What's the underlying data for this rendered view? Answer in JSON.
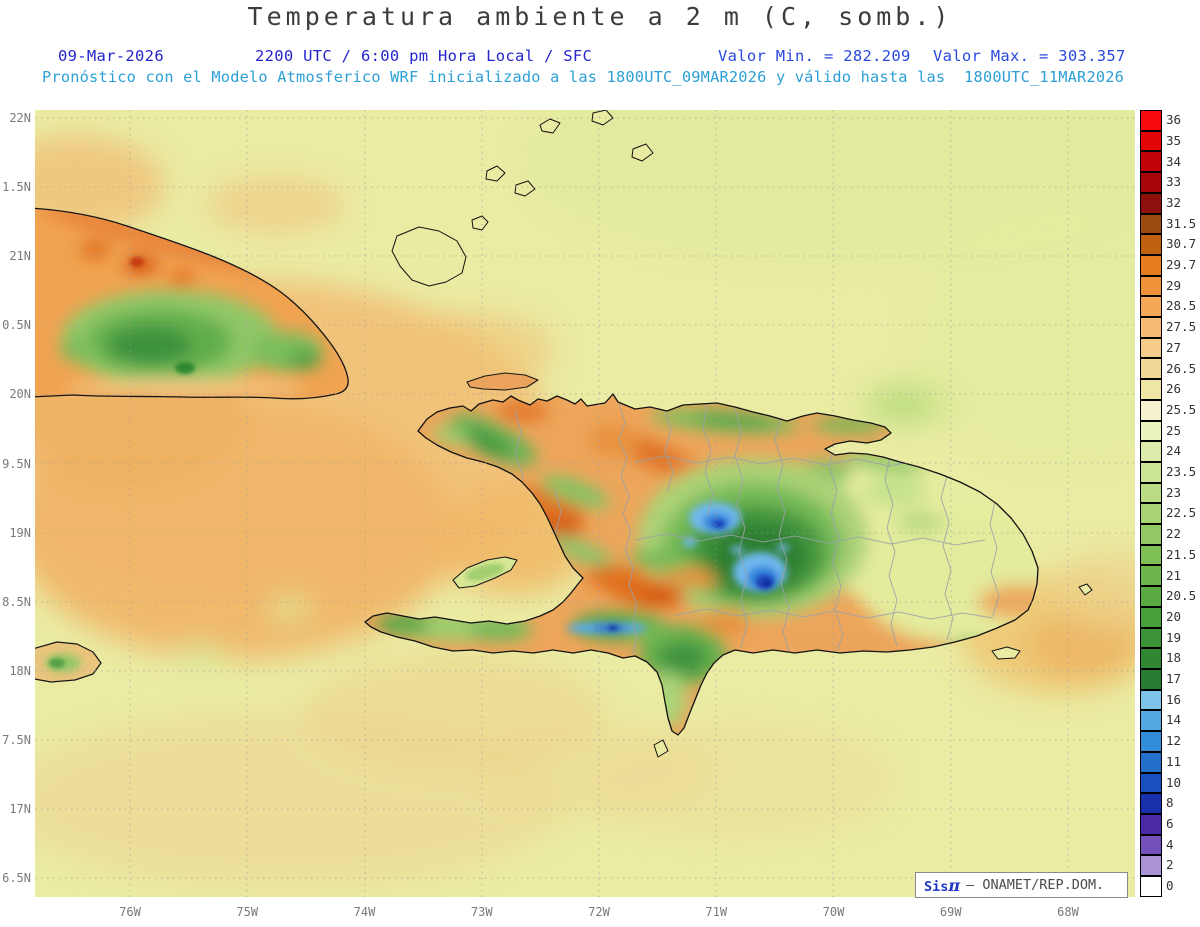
{
  "title": "Temperatura ambiente a 2 m (C, somb.)",
  "subtitle": {
    "date": "09-Mar-2026",
    "time_line": "2200 UTC / 6:00 pm Hora Local / SFC",
    "valor_min": "Valor Min. = 282.209",
    "valor_max": "Valor Max. = 303.357",
    "model_line": "Pronóstico con el Modelo Atmosferico WRF inicializado a las 1800UTC_09MAR2026 y válido hasta las  1800UTC_11MAR2026"
  },
  "credit": {
    "sis": "Sis",
    "pi": "π",
    "rest": "– ONAMET/REP.DOM."
  },
  "axes": {
    "lat": [
      "22N",
      "1.5N",
      "21N",
      "0.5N",
      "20N",
      "9.5N",
      "19N",
      "8.5N",
      "18N",
      "7.5N",
      "17N",
      "6.5N"
    ],
    "lon": [
      "76W",
      "75W",
      "74W",
      "73W",
      "72W",
      "71W",
      "70W",
      "69W",
      "68W"
    ]
  },
  "colorbar": {
    "unit": "C",
    "levels": [
      "36",
      "35",
      "34",
      "33",
      "32",
      "31.5",
      "30.7",
      "29.7",
      "29",
      "28.5",
      "27.5",
      "27",
      "26.5",
      "26",
      "25.5",
      "25",
      "24",
      "23.5",
      "23",
      "22.5",
      "22",
      "21.5",
      "21",
      "20.5",
      "20",
      "19",
      "18",
      "17",
      "16",
      "14",
      "12",
      "11",
      "10",
      "8",
      "6",
      "4",
      "2",
      "0"
    ],
    "colors": [
      "#fa0a0f",
      "#e30505",
      "#c20408",
      "#a4040a",
      "#8e100c",
      "#9c4a10",
      "#c06110",
      "#e87d20",
      "#f0923a",
      "#f4a858",
      "#f6bc74",
      "#f4cb88",
      "#f1d896",
      "#efe5a4",
      "#f5f2cd",
      "#ecf2c0",
      "#dcecaa",
      "#cbe496",
      "#badc84",
      "#a7d374",
      "#93c964",
      "#7fc056",
      "#6cb64b",
      "#59ab41",
      "#47a03a",
      "#3a9336",
      "#2f8733",
      "#287b31",
      "#7cc4ea",
      "#55a9e2",
      "#338cd8",
      "#2270cc",
      "#1850c0",
      "#1930ac",
      "#4a2aa6",
      "#7450bc",
      "#ab93d6",
      "#ffffff"
    ]
  },
  "chart_data": {
    "type": "heatmap",
    "title": "Temperatura ambiente a 2 m (C, somb.)",
    "unit": "C",
    "value_min": 282.209,
    "value_max": 303.357,
    "x_tick_labels": [
      "76W",
      "75W",
      "74W",
      "73W",
      "72W",
      "71W",
      "70W",
      "69W",
      "68W"
    ],
    "y_tick_labels": [
      "22N",
      "1.5N",
      "21N",
      "0.5N",
      "20N",
      "9.5N",
      "19N",
      "8.5N",
      "18N",
      "7.5N",
      "17N",
      "6.5N"
    ],
    "scale_levels": [
      0,
      2,
      4,
      6,
      8,
      10,
      11,
      12,
      14,
      16,
      17,
      18,
      19,
      20,
      20.5,
      21,
      21.5,
      22,
      22.5,
      23,
      23.5,
      24,
      25,
      25.5,
      26,
      26.5,
      27,
      27.5,
      28.5,
      29,
      29.7,
      30.7,
      31.5,
      32,
      33,
      34,
      35,
      36
    ],
    "legend_position": "right"
  }
}
